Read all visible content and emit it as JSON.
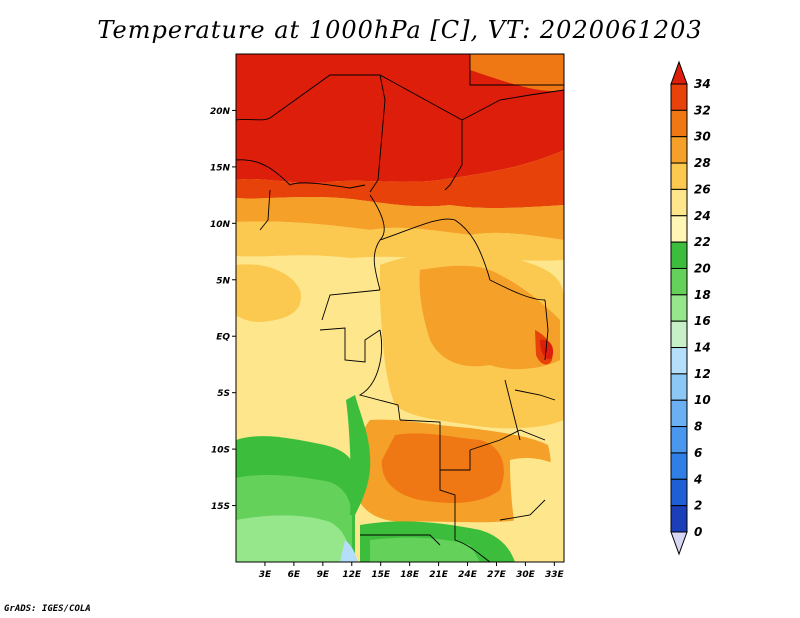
{
  "title": "Temperature at 1000hPa [C], VT: 2020061203",
  "credit": "GrADS: IGES/COLA",
  "map": {
    "lat_range": [
      -20,
      25
    ],
    "lon_range": [
      0,
      34
    ],
    "lat_ticks": [
      {
        "value": 20,
        "label": "20N"
      },
      {
        "value": 15,
        "label": "15N"
      },
      {
        "value": 10,
        "label": "10N"
      },
      {
        "value": 5,
        "label": "5N"
      },
      {
        "value": 0,
        "label": "EQ"
      },
      {
        "value": -5,
        "label": "5S"
      },
      {
        "value": -10,
        "label": "10S"
      },
      {
        "value": -15,
        "label": "15S"
      }
    ],
    "lon_ticks": [
      {
        "value": 3,
        "label": "3E"
      },
      {
        "value": 6,
        "label": "6E"
      },
      {
        "value": 9,
        "label": "9E"
      },
      {
        "value": 12,
        "label": "12E"
      },
      {
        "value": 15,
        "label": "15E"
      },
      {
        "value": 18,
        "label": "18E"
      },
      {
        "value": 21,
        "label": "21E"
      },
      {
        "value": 24,
        "label": "24E"
      },
      {
        "value": 27,
        "label": "27E"
      },
      {
        "value": 30,
        "label": "30E"
      },
      {
        "value": 33,
        "label": "33E"
      }
    ]
  },
  "colorbar": {
    "levels": [
      "0",
      "2",
      "4",
      "6",
      "8",
      "10",
      "12",
      "14",
      "16",
      "18",
      "20",
      "22",
      "24",
      "26",
      "28",
      "30",
      "32",
      "34"
    ],
    "colors": [
      "#0a1a6e",
      "#1a3fb8",
      "#1e5fd6",
      "#2f7fe6",
      "#4a98ee",
      "#6ab0f2",
      "#8cc8f6",
      "#b4defa",
      "#c8f0c8",
      "#96e68c",
      "#64d25a",
      "#3cbe3c",
      "#fff5b4",
      "#fde68c",
      "#fbc850",
      "#f5a028",
      "#f07814",
      "#e6420a",
      "#dc1e0a"
    ],
    "min_cap_color": "#d7d7f5",
    "max_cap_color": "#dc1e0a"
  }
}
